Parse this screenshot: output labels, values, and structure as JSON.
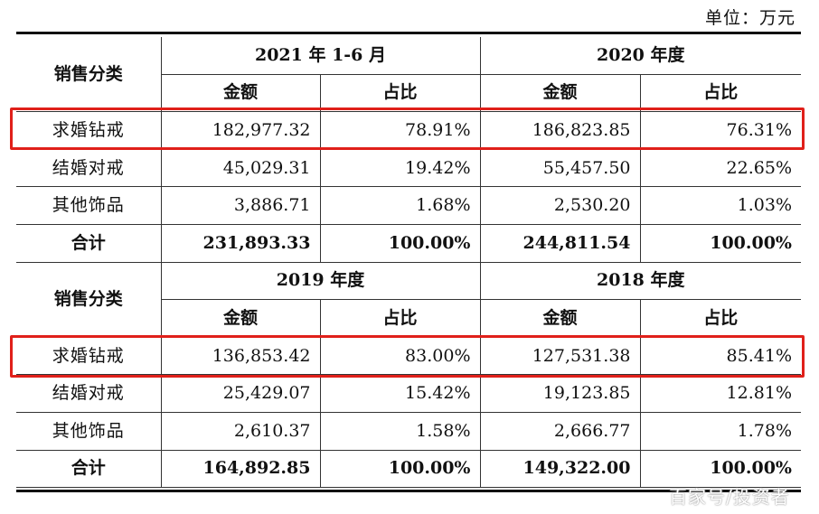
{
  "unit_label": "单位：万元",
  "blocks": [
    {
      "category_header": "销售分类",
      "periods": [
        "2021 年 1-6 月",
        "2020 年度"
      ],
      "sub_headers": [
        "金额",
        "占比",
        "金额",
        "占比"
      ],
      "rows": [
        {
          "category": "求婚钻戒",
          "values": [
            "182,977.32",
            "78.91%",
            "186,823.85",
            "76.31%"
          ],
          "highlighted": true
        },
        {
          "category": "结婚对戒",
          "values": [
            "45,029.31",
            "19.42%",
            "55,457.50",
            "22.65%"
          ],
          "highlighted": false
        },
        {
          "category": "其他饰品",
          "values": [
            "3,886.71",
            "1.68%",
            "2,530.20",
            "1.03%"
          ],
          "highlighted": false
        }
      ],
      "total": {
        "category": "合计",
        "values": [
          "231,893.33",
          "100.00%",
          "244,811.54",
          "100.00%"
        ]
      }
    },
    {
      "category_header": "销售分类",
      "periods": [
        "2019 年度",
        "2018 年度"
      ],
      "sub_headers": [
        "金额",
        "占比",
        "金额",
        "占比"
      ],
      "rows": [
        {
          "category": "求婚钻戒",
          "values": [
            "136,853.42",
            "83.00%",
            "127,531.38",
            "85.41%"
          ],
          "highlighted": true
        },
        {
          "category": "结婚对戒",
          "values": [
            "25,429.07",
            "15.42%",
            "19,123.85",
            "12.81%"
          ],
          "highlighted": false
        },
        {
          "category": "其他饰品",
          "values": [
            "2,610.37",
            "1.58%",
            "2,666.77",
            "1.78%"
          ],
          "highlighted": false
        }
      ],
      "total": {
        "category": "合计",
        "values": [
          "164,892.85",
          "100.00%",
          "149,322.00",
          "100.00%"
        ]
      }
    }
  ],
  "highlight_color": "#e0201a",
  "watermark": "百家号/投资者"
}
